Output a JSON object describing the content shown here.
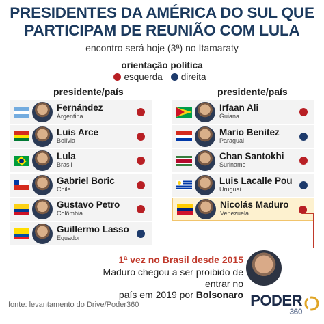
{
  "title_line1": "PRESIDENTES DA AMÉRICA DO SUL QUE",
  "title_line2": "PARTICIPAM DE REUNIÃO COM LULA",
  "subtitle": "encontro será hoje (3ª) no Itamaraty",
  "legend": {
    "title": "orientação política",
    "left_label": "esquerda",
    "right_label": "direita",
    "left_color": "#b81f24",
    "right_color": "#1d3a6b"
  },
  "column_header": "presidente/país",
  "left_column": [
    {
      "name": "Fernández",
      "country": "Argentina",
      "orientation": "left",
      "flag": "argentina"
    },
    {
      "name": "Luis Arce",
      "country": "Bolívia",
      "orientation": "left",
      "flag": "bolivia"
    },
    {
      "name": "Lula",
      "country": "Brasil",
      "orientation": "left",
      "flag": "brazil"
    },
    {
      "name": "Gabriel Boric",
      "country": "Chile",
      "orientation": "left",
      "flag": "chile"
    },
    {
      "name": "Gustavo Petro",
      "country": "Colômbia",
      "orientation": "left",
      "flag": "colombia"
    },
    {
      "name": "Guillermo Lasso",
      "country": "Equador",
      "orientation": "right",
      "flag": "ecuador"
    }
  ],
  "right_column": [
    {
      "name": "Irfaan Ali",
      "country": "Guiana",
      "orientation": "left",
      "flag": "guyana"
    },
    {
      "name": "Mario Benítez",
      "country": "Paraguai",
      "orientation": "right",
      "flag": "paraguay"
    },
    {
      "name": "Chan Santokhi",
      "country": "Suriname",
      "orientation": "left",
      "flag": "suriname"
    },
    {
      "name": "Luis Lacalle Pou",
      "country": "Uruguai",
      "orientation": "right",
      "flag": "uruguay"
    },
    {
      "name": "Nicolás Maduro",
      "country": "Venezuela",
      "orientation": "left",
      "flag": "venezuela",
      "highlight": true
    }
  ],
  "note": {
    "heading": "1ª vez no Brasil desde 2015",
    "body_line1": "Maduro chegou a ser proibido de entrar no",
    "body_line2_prefix": "país em 2019 por ",
    "body_line2_emph": "Bolsonaro"
  },
  "source": "fonte: levantamento do Drive/Poder360",
  "logo": {
    "main": "PODER",
    "sub": "360"
  }
}
